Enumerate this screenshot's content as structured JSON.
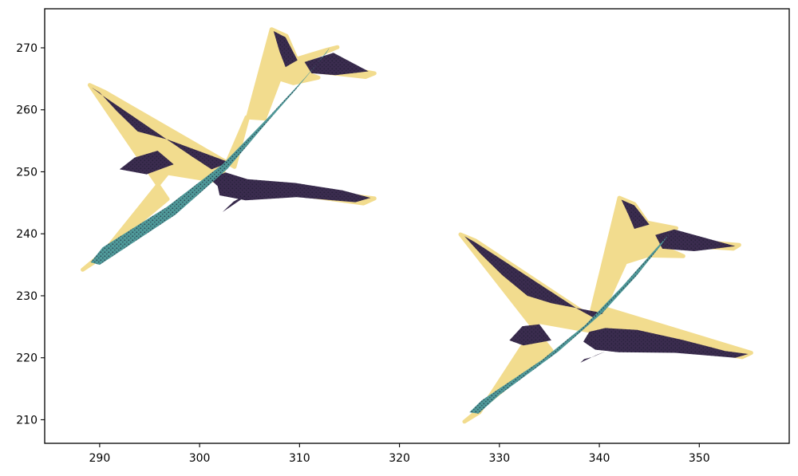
{
  "chart_data": {
    "type": "scatter",
    "title": "",
    "xlabel": "",
    "ylabel": "",
    "xlim": [
      284.5,
      359.0
    ],
    "ylim": [
      206.2,
      276.3
    ],
    "x_ticks": [
      290,
      300,
      310,
      320,
      330,
      340,
      350
    ],
    "y_ticks": [
      210,
      220,
      230,
      240,
      250,
      260,
      270
    ],
    "x_tick_labels": [
      "290",
      "300",
      "310",
      "320",
      "330",
      "340",
      "350"
    ],
    "y_tick_labels": [
      "210",
      "220",
      "230",
      "240",
      "250",
      "260",
      "270"
    ],
    "grid": false,
    "legend": "none",
    "colors": {
      "edge": "#f2dc8e",
      "wing": "#3b2c4f",
      "fuselage": "#4f9a9a",
      "dot": "#1c1b2f"
    },
    "series": [
      {
        "group": "edge",
        "polygons": [
          [
            [
              288.3,
              234.2
            ],
            [
              296.8,
              245.6
            ],
            [
              289.0,
              264.0
            ],
            [
              290.5,
              262.9
            ],
            [
              303.5,
              250.8
            ],
            [
              307.2,
              273.0
            ],
            [
              308.7,
              271.9
            ],
            [
              309.7,
              268.2
            ],
            [
              312.8,
              269.7
            ],
            [
              313.8,
              270.1
            ],
            [
              310.5,
              267.9
            ],
            [
              317.5,
              265.9
            ],
            [
              316.6,
              265.3
            ],
            [
              309.4,
              266.6
            ],
            [
              311.9,
              265.2
            ],
            [
              309.4,
              264.3
            ],
            [
              308.0,
              265.0
            ],
            [
              306.5,
              258.6
            ],
            [
              304.7,
              258.8
            ],
            [
              302.0,
              248.7
            ],
            [
              317.5,
              245.7
            ],
            [
              316.4,
              244.9
            ],
            [
              310.4,
              246.2
            ],
            [
              296.8,
              249.8
            ],
            [
              289.8,
              235.8
            ]
          ],
          [
            [
              326.5,
              209.7
            ],
            [
              335.2,
              221.2
            ],
            [
              326.1,
              239.9
            ],
            [
              327.6,
              238.9
            ],
            [
              339.1,
              226.6
            ],
            [
              342.0,
              245.8
            ],
            [
              343.5,
              244.8
            ],
            [
              344.8,
              241.8
            ],
            [
              347.7,
              240.9
            ],
            [
              345.4,
              239.3
            ],
            [
              354.0,
              238.2
            ],
            [
              353.4,
              237.6
            ],
            [
              345.4,
              238.5
            ],
            [
              348.4,
              236.4
            ],
            [
              344.8,
              236.5
            ],
            [
              342.6,
              235.4
            ],
            [
              340.5,
              228.0
            ],
            [
              355.2,
              220.8
            ],
            [
              354.3,
              220.1
            ],
            [
              347.9,
              221.8
            ],
            [
              333.9,
              225.8
            ],
            [
              328.0,
              211.2
            ]
          ]
        ]
      },
      {
        "group": "wing",
        "polygons": [
          [
            [
              289.2,
              263.6
            ],
            [
              290.2,
              262.4
            ],
            [
              299.2,
              252.5
            ],
            [
              301.2,
              250.4
            ],
            [
              303.0,
              251.5
            ],
            [
              296.8,
              255.2
            ],
            [
              293.8,
              256.5
            ],
            [
              291.7,
              259.8
            ],
            [
              290.0,
              262.8
            ]
          ],
          [
            [
              292.0,
              250.4
            ],
            [
              293.5,
              252.3
            ],
            [
              295.8,
              253.4
            ],
            [
              297.4,
              251.2
            ],
            [
              294.7,
              249.6
            ]
          ],
          [
            [
              301.0,
              248.9
            ],
            [
              302.6,
              249.9
            ],
            [
              304.8,
              248.8
            ],
            [
              309.6,
              248.2
            ],
            [
              314.3,
              247.0
            ],
            [
              317.1,
              245.8
            ],
            [
              315.6,
              245.1
            ],
            [
              309.7,
              245.9
            ],
            [
              304.6,
              245.4
            ],
            [
              302.0,
              246.2
            ],
            [
              301.8,
              247.7
            ]
          ],
          [
            [
              302.3,
              243.5
            ],
            [
              304.3,
              245.7
            ],
            [
              305.0,
              246.6
            ],
            [
              303.4,
              245.2
            ],
            [
              302.8,
              244.3
            ]
          ],
          [
            [
              307.4,
              272.7
            ],
            [
              308.6,
              271.7
            ],
            [
              309.8,
              268.0
            ],
            [
              308.6,
              266.9
            ],
            [
              308.0,
              269.4
            ]
          ],
          [
            [
              310.5,
              267.7
            ],
            [
              313.4,
              269.2
            ],
            [
              316.9,
              266.2
            ],
            [
              313.6,
              265.6
            ],
            [
              311.2,
              265.9
            ]
          ],
          [
            [
              326.5,
              239.6
            ],
            [
              327.6,
              238.6
            ],
            [
              337.8,
              227.9
            ],
            [
              339.4,
              226.5
            ],
            [
              340.4,
              227.2
            ],
            [
              335.2,
              228.8
            ],
            [
              332.8,
              230.0
            ],
            [
              330.3,
              233.3
            ],
            [
              328.1,
              236.8
            ]
          ],
          [
            [
              331.0,
              222.8
            ],
            [
              332.3,
              225.1
            ],
            [
              334.0,
              225.4
            ],
            [
              335.2,
              222.8
            ],
            [
              332.4,
              222.0
            ]
          ],
          [
            [
              339.0,
              224.2
            ],
            [
              340.6,
              224.8
            ],
            [
              343.8,
              224.5
            ],
            [
              348.3,
              222.9
            ],
            [
              352.6,
              221.1
            ],
            [
              354.9,
              220.6
            ],
            [
              353.6,
              220.0
            ],
            [
              347.6,
              220.8
            ],
            [
              341.9,
              220.9
            ],
            [
              339.6,
              221.3
            ],
            [
              338.4,
              222.6
            ]
          ],
          [
            [
              338.1,
              219.2
            ],
            [
              339.8,
              220.5
            ],
            [
              340.6,
              221.0
            ],
            [
              339.3,
              220.1
            ],
            [
              338.5,
              219.8
            ]
          ],
          [
            [
              342.2,
              245.5
            ],
            [
              343.5,
              244.6
            ],
            [
              345.0,
              241.5
            ],
            [
              343.5,
              240.8
            ],
            [
              342.9,
              243.1
            ]
          ],
          [
            [
              345.6,
              239.8
            ],
            [
              347.5,
              240.7
            ],
            [
              353.6,
              238.0
            ],
            [
              349.5,
              237.2
            ],
            [
              346.3,
              237.6
            ]
          ]
        ]
      },
      {
        "group": "fuselage",
        "polygons": [
          [
            [
              289.1,
              235.4
            ],
            [
              290.3,
              237.8
            ],
            [
              296.7,
              244.3
            ],
            [
              302.3,
              251.2
            ],
            [
              307.0,
              259.0
            ],
            [
              310.5,
              265.1
            ],
            [
              312.7,
              269.2
            ],
            [
              313.0,
              270.0
            ],
            [
              311.7,
              267.3
            ],
            [
              309.6,
              263.2
            ],
            [
              306.7,
              257.9
            ],
            [
              302.8,
              250.5
            ],
            [
              297.6,
              243.1
            ],
            [
              291.8,
              236.9
            ],
            [
              290.0,
              235.0
            ]
          ],
          [
            [
              327.0,
              211.2
            ],
            [
              328.2,
              213.1
            ],
            [
              334.3,
              219.7
            ],
            [
              338.6,
              225.3
            ],
            [
              342.4,
              231.7
            ],
            [
              345.2,
              236.8
            ],
            [
              347.0,
              240.0
            ],
            [
              346.1,
              238.0
            ],
            [
              343.7,
              233.2
            ],
            [
              340.4,
              227.4
            ],
            [
              335.9,
              221.0
            ],
            [
              330.0,
              214.0
            ],
            [
              327.9,
              211.0
            ]
          ]
        ]
      }
    ]
  }
}
